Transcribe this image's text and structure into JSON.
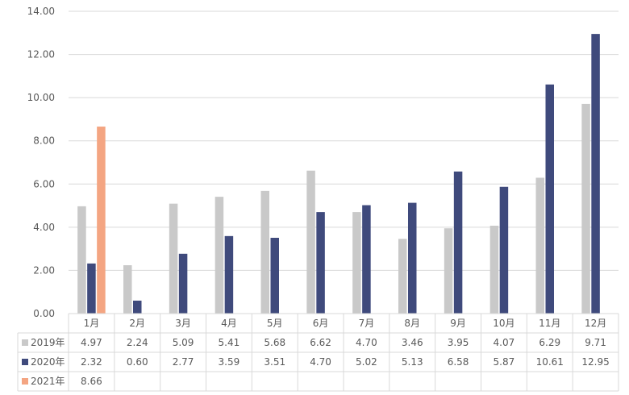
{
  "chart_data": {
    "type": "bar",
    "categories": [
      "1月",
      "2月",
      "3月",
      "4月",
      "5月",
      "6月",
      "7月",
      "8月",
      "9月",
      "10月",
      "11月",
      "12月"
    ],
    "series": [
      {
        "name": "2019年",
        "color": "#c9c9c9",
        "values": [
          "4.97",
          "2.24",
          "5.09",
          "5.41",
          "5.68",
          "6.62",
          "4.70",
          "3.46",
          "3.95",
          "4.07",
          "6.29",
          "9.71"
        ]
      },
      {
        "name": "2020年",
        "color": "#3f4a7c",
        "values": [
          "2.32",
          "0.60",
          "2.77",
          "3.59",
          "3.51",
          "4.70",
          "5.02",
          "5.13",
          "6.58",
          "5.87",
          "10.61",
          "12.95"
        ]
      },
      {
        "name": "2021年",
        "color": "#f4a582",
        "values": [
          "8.66",
          "",
          "",
          "",
          "",
          "",
          "",
          "",
          "",
          "",
          "",
          ""
        ]
      }
    ],
    "yticks": [
      "0.00",
      "2.00",
      "4.00",
      "6.00",
      "8.00",
      "10.00",
      "12.00",
      "14.00"
    ],
    "ylim": [
      0,
      14
    ],
    "grid": true,
    "legend": "data-table"
  }
}
